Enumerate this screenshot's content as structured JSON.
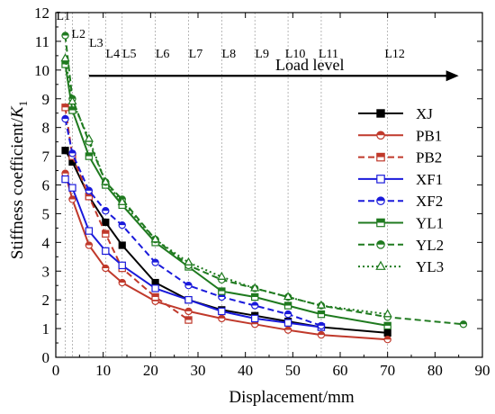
{
  "chart_data": {
    "type": "line",
    "xlabel": "Displacement/mm",
    "ylabel_main": "Stiffness coefficient/",
    "ylabel_italic": "K",
    "ylabel_sub": "1",
    "xlim": [
      0,
      90
    ],
    "ylim": [
      0,
      12
    ],
    "xticks": [
      0,
      10,
      20,
      30,
      40,
      50,
      60,
      70,
      80,
      90
    ],
    "yticks": [
      0,
      1,
      2,
      3,
      4,
      5,
      6,
      7,
      8,
      9,
      10,
      11,
      12
    ],
    "grid": false,
    "legend_position": "right",
    "load_levels": [
      {
        "label": "L1",
        "x": 2
      },
      {
        "label": "L2",
        "x": 3.5
      },
      {
        "label": "L3",
        "x": 7
      },
      {
        "label": "L4",
        "x": 10.5
      },
      {
        "label": "L5",
        "x": 14
      },
      {
        "label": "L6",
        "x": 21
      },
      {
        "label": "L7",
        "x": 28
      },
      {
        "label": "L8",
        "x": 35
      },
      {
        "label": "L9",
        "x": 42
      },
      {
        "label": "L10",
        "x": 49
      },
      {
        "label": "L11",
        "x": 56
      },
      {
        "label": "L12",
        "x": 70
      }
    ],
    "load_level_arrow": {
      "label": "Load level",
      "x_start": 7,
      "x_end": 85,
      "y": 9.8
    },
    "series": [
      {
        "name": "XJ",
        "color": "#000000",
        "dash": "solid",
        "marker": "square-filled",
        "x": [
          2,
          3.5,
          7,
          10.5,
          14,
          21,
          28,
          35,
          42,
          49,
          56,
          70
        ],
        "y": [
          7.2,
          6.8,
          5.6,
          4.7,
          3.9,
          2.6,
          2.0,
          1.65,
          1.45,
          1.25,
          1.05,
          0.85
        ]
      },
      {
        "name": "PB1",
        "color": "#c0392b",
        "dash": "solid",
        "marker": "circle-half",
        "x": [
          2,
          3.5,
          7,
          10.5,
          14,
          21,
          28,
          35,
          42,
          49,
          56,
          70
        ],
        "y": [
          6.4,
          5.5,
          3.9,
          3.1,
          2.6,
          1.95,
          1.6,
          1.35,
          1.15,
          0.95,
          0.78,
          0.62
        ]
      },
      {
        "name": "PB2",
        "color": "#c0392b",
        "dash": "dashed",
        "marker": "square-half",
        "x": [
          2,
          3.5,
          7,
          10.5,
          14,
          21,
          28
        ],
        "y": [
          8.7,
          7.0,
          5.6,
          4.3,
          3.1,
          2.1,
          1.3
        ]
      },
      {
        "name": "XF1",
        "color": "#1a1adb",
        "dash": "solid",
        "marker": "square-open",
        "x": [
          2,
          3.5,
          7,
          10.5,
          14,
          21,
          28,
          35,
          42,
          49,
          56
        ],
        "y": [
          6.2,
          5.9,
          4.4,
          3.7,
          3.2,
          2.4,
          2.0,
          1.6,
          1.35,
          1.2,
          1.05
        ]
      },
      {
        "name": "XF2",
        "color": "#1a1adb",
        "dash": "dashed",
        "marker": "circle-half",
        "x": [
          2,
          3.5,
          7,
          10.5,
          14,
          21,
          28,
          35,
          42,
          49,
          56
        ],
        "y": [
          8.3,
          7.1,
          5.8,
          5.1,
          4.6,
          3.3,
          2.5,
          2.1,
          1.8,
          1.5,
          1.1
        ]
      },
      {
        "name": "YL1",
        "color": "#1f7a1f",
        "dash": "solid",
        "marker": "square-half",
        "x": [
          2,
          3.5,
          7,
          10.5,
          14,
          21,
          28,
          35,
          42,
          49,
          56,
          70
        ],
        "y": [
          10.2,
          8.6,
          7.0,
          6.0,
          5.3,
          4.0,
          3.15,
          2.3,
          2.1,
          1.8,
          1.5,
          1.1
        ]
      },
      {
        "name": "YL2",
        "color": "#1f7a1f",
        "dash": "dashed",
        "marker": "circle-half",
        "x": [
          2,
          3.5,
          7,
          10.5,
          14,
          21,
          28,
          35,
          42,
          49,
          56,
          70,
          86
        ],
        "y": [
          11.2,
          9.0,
          7.5,
          6.1,
          5.5,
          4.1,
          3.2,
          2.7,
          2.4,
          2.1,
          1.8,
          1.4,
          1.15
        ]
      },
      {
        "name": "YL3",
        "color": "#1f7a1f",
        "dash": "dotted",
        "marker": "triangle-open",
        "x": [
          2,
          3.5,
          7,
          10.5,
          14,
          21,
          28,
          35,
          42,
          49,
          56,
          70
        ],
        "y": [
          10.4,
          8.9,
          7.6,
          6.1,
          5.4,
          4.1,
          3.3,
          2.8,
          2.4,
          2.1,
          1.8,
          1.5
        ]
      }
    ]
  }
}
